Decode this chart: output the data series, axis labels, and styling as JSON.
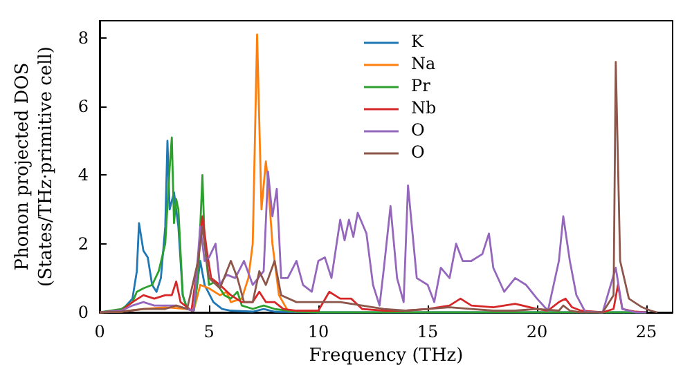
{
  "chart_data": {
    "type": "line",
    "xlabel": "Frequency (THz)",
    "ylabel": "Phonon projected DOS\n(States/THz·primitive cell)",
    "xlim": [
      0,
      26.2
    ],
    "ylim": [
      0,
      8.5
    ],
    "xticks": [
      0,
      5,
      10,
      15,
      20,
      25
    ],
    "yticks": [
      0,
      2,
      4,
      6,
      8
    ],
    "grid": false,
    "legend": "top center",
    "marker": "none",
    "line_style": "solid",
    "series": [
      {
        "name": "K",
        "color": "#1f77b4",
        "x": [
          0,
          1,
          1.5,
          1.7,
          1.8,
          2.0,
          2.2,
          2.4,
          2.6,
          2.8,
          3.0,
          3.1,
          3.2,
          3.4,
          3.5,
          3.6,
          3.8,
          4.0,
          4.3,
          4.6,
          4.8,
          5.2,
          5.6,
          6,
          7,
          7.5,
          8,
          10,
          25
        ],
        "values": [
          0,
          0.05,
          0.4,
          1.2,
          2.6,
          1.8,
          1.6,
          0.8,
          0.6,
          1.0,
          2.5,
          5.0,
          3.0,
          3.5,
          3.0,
          2.5,
          0.5,
          0.1,
          0.05,
          1.5,
          0.8,
          0.3,
          0.1,
          0.05,
          0.02,
          0.1,
          0.02,
          0,
          0
        ]
      },
      {
        "name": "Na",
        "color": "#ff7f0e",
        "x": [
          0,
          1,
          2,
          3,
          4,
          4.3,
          4.6,
          5,
          5.5,
          5.8,
          6,
          6.5,
          6.8,
          7.0,
          7.2,
          7.4,
          7.6,
          7.7,
          7.9,
          8.2,
          8.6,
          9
        ],
        "values": [
          0,
          0.02,
          0.1,
          0.15,
          0.1,
          0.05,
          0.8,
          0.7,
          0.5,
          0.6,
          0.3,
          0.4,
          1.0,
          2.0,
          8.1,
          3.0,
          4.4,
          3.8,
          2.0,
          0.5,
          0.05,
          0.02
        ]
      },
      {
        "name": "Pr",
        "color": "#2ca02c",
        "x": [
          0,
          1,
          1.5,
          1.7,
          2.0,
          2.4,
          2.7,
          3.0,
          3.2,
          3.3,
          3.4,
          3.5,
          3.6,
          3.8,
          4.0,
          4.3,
          4.5,
          4.7,
          4.8,
          5.0,
          5.3,
          5.5,
          5.7,
          6,
          6.3,
          6.5,
          7,
          7.5,
          8,
          9,
          10,
          25
        ],
        "values": [
          0,
          0.1,
          0.3,
          0.6,
          0.7,
          0.8,
          1.2,
          2.0,
          4.2,
          5.1,
          2.6,
          3.3,
          3.0,
          0.5,
          0.1,
          0.05,
          1.0,
          4.0,
          2.0,
          0.8,
          0.9,
          0.7,
          0.5,
          0.4,
          0.6,
          0.2,
          0.1,
          0.2,
          0.1,
          0.02,
          0,
          0
        ]
      },
      {
        "name": "Nb",
        "color": "#d62728",
        "x": [
          0,
          1,
          1.5,
          2,
          2.5,
          3,
          3.3,
          3.5,
          3.7,
          4.2,
          4.5,
          4.7,
          4.9,
          5.1,
          5.5,
          6,
          6.5,
          7,
          7.3,
          7.6,
          8,
          8.4,
          9,
          10,
          10.5,
          11,
          11.5,
          12,
          13,
          14,
          15,
          16,
          16.5,
          17,
          18,
          19,
          20,
          20.5,
          21,
          21.3,
          21.6,
          22,
          23,
          23.5,
          23.7,
          23.9,
          24.5,
          25
        ],
        "values": [
          0,
          0.05,
          0.3,
          0.5,
          0.4,
          0.5,
          0.5,
          0.9,
          0.3,
          0.05,
          1.5,
          2.8,
          1.8,
          1.0,
          0.8,
          0.5,
          0.3,
          0.3,
          0.6,
          0.3,
          0.3,
          0.1,
          0.05,
          0.05,
          0.6,
          0.4,
          0.4,
          0.1,
          0.05,
          0.05,
          0.1,
          0.2,
          0.4,
          0.2,
          0.15,
          0.25,
          0.1,
          0.05,
          0.3,
          0.4,
          0.15,
          0.05,
          0,
          0.1,
          0.8,
          0.1,
          0.02,
          0
        ]
      },
      {
        "name": "O",
        "color": "#9467bd",
        "x": [
          0,
          1,
          1.5,
          2,
          2.5,
          3,
          3.5,
          4,
          4.3,
          4.6,
          4.8,
          5.0,
          5.3,
          5.5,
          5.8,
          6.2,
          6.6,
          7,
          7.5,
          7.7,
          7.9,
          8.1,
          8.3,
          8.6,
          9,
          9.3,
          9.7,
          10,
          10.3,
          10.6,
          11,
          11.2,
          11.4,
          11.6,
          11.8,
          12.2,
          12.5,
          12.8,
          13.0,
          13.3,
          13.6,
          13.9,
          14.1,
          14.5,
          15,
          15.3,
          15.6,
          16,
          16.3,
          16.6,
          17,
          17.5,
          17.8,
          18,
          18.5,
          19,
          19.5,
          20,
          20.5,
          21.0,
          21.2,
          21.5,
          21.8,
          22.2,
          23,
          23.6,
          23.9,
          24.5,
          25
        ],
        "values": [
          0,
          0.05,
          0.2,
          0.3,
          0.2,
          0.2,
          0.2,
          0.1,
          0.05,
          2.5,
          1.5,
          1.6,
          2.0,
          0.8,
          1.1,
          1.0,
          1.5,
          0.8,
          1.2,
          4.1,
          2.8,
          3.6,
          1.0,
          1.0,
          1.5,
          0.8,
          0.6,
          1.5,
          1.6,
          1.0,
          2.7,
          2.1,
          2.7,
          2.2,
          2.9,
          2.3,
          0.8,
          0.2,
          1.3,
          3.1,
          1.0,
          0.3,
          3.7,
          1.0,
          0.8,
          0.3,
          1.3,
          1.0,
          2.0,
          1.5,
          1.5,
          1.7,
          2.3,
          1.3,
          0.6,
          1.0,
          0.8,
          0.4,
          0.05,
          1.5,
          2.8,
          1.5,
          0.5,
          0.02,
          0,
          1.3,
          0.1,
          0,
          0
        ]
      },
      {
        "name": "O",
        "color": "#8c564b",
        "x": [
          0,
          1,
          2,
          3,
          3.5,
          4,
          4.5,
          4.7,
          5,
          5.5,
          6,
          6.3,
          6.6,
          7,
          7.3,
          7.6,
          8,
          8.3,
          9,
          10,
          11,
          12,
          13,
          14,
          15,
          16,
          17,
          18,
          19,
          20,
          21,
          21.2,
          21.5,
          22,
          23,
          23.5,
          23.6,
          23.8,
          24.2,
          24.8,
          25.2,
          25.5
        ],
        "values": [
          0,
          0.02,
          0.1,
          0.1,
          0.2,
          0.1,
          1.5,
          2.5,
          1.0,
          0.7,
          1.5,
          1.0,
          0.3,
          0.3,
          1.2,
          0.8,
          1.5,
          0.5,
          0.3,
          0.3,
          0.3,
          0.2,
          0.1,
          0.05,
          0.1,
          0.15,
          0.1,
          0.05,
          0.05,
          0.1,
          0.05,
          0.2,
          0.05,
          0,
          0,
          0.5,
          7.3,
          1.5,
          0.4,
          0.15,
          0.05,
          0
        ]
      }
    ]
  }
}
